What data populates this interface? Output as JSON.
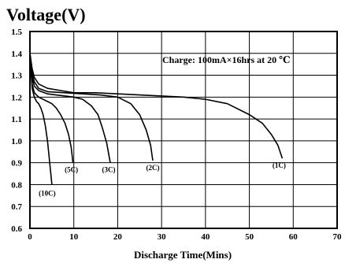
{
  "chart_data": {
    "type": "line",
    "title": "Voltage(V)",
    "xlabel": "Discharge Time(Mins)",
    "ylabel": "",
    "xlim": [
      0,
      70
    ],
    "ylim": [
      0.6,
      1.5
    ],
    "xticks": [
      0,
      10,
      20,
      30,
      40,
      50,
      60,
      70
    ],
    "yticks": [
      0.6,
      0.7,
      0.8,
      0.9,
      1.0,
      1.1,
      1.2,
      1.3,
      1.4,
      1.5
    ],
    "xtick_labels": [
      "0",
      "10",
      "20",
      "30",
      "40",
      "50",
      "60",
      "70"
    ],
    "ytick_labels": [
      "0.6",
      "0.7",
      "0.8",
      "0.9",
      "1.0",
      "1.1",
      "1.2",
      "1.3",
      "1.4",
      "1.5"
    ],
    "grid": true,
    "annotation": "Charge: 100mA×16hrs at 20 ℃",
    "series": [
      {
        "name": "(1C)",
        "x": [
          0,
          0.5,
          1,
          2,
          4,
          7,
          10,
          15,
          20,
          25,
          30,
          35,
          40,
          45,
          50,
          53,
          55,
          56.5,
          57.5
        ],
        "y": [
          1.4,
          1.33,
          1.29,
          1.26,
          1.24,
          1.23,
          1.22,
          1.22,
          1.215,
          1.21,
          1.205,
          1.2,
          1.19,
          1.17,
          1.12,
          1.08,
          1.03,
          0.98,
          0.92
        ]
      },
      {
        "name": "(2C)",
        "x": [
          0,
          0.5,
          1,
          2,
          4,
          8,
          12,
          16,
          20,
          23,
          25,
          26.5,
          27.5,
          28
        ],
        "y": [
          1.4,
          1.31,
          1.27,
          1.24,
          1.225,
          1.22,
          1.215,
          1.21,
          1.2,
          1.17,
          1.12,
          1.05,
          0.98,
          0.91
        ]
      },
      {
        "name": "(3C)",
        "x": [
          0,
          0.5,
          1,
          2,
          4,
          6,
          8,
          10,
          12,
          14,
          15.5,
          16.5,
          17.5,
          18.3
        ],
        "y": [
          1.4,
          1.29,
          1.25,
          1.23,
          1.215,
          1.21,
          1.205,
          1.2,
          1.19,
          1.16,
          1.12,
          1.06,
          0.99,
          0.9
        ]
      },
      {
        "name": "(5C)",
        "x": [
          0,
          0.5,
          1,
          2,
          3,
          4,
          5,
          6,
          7,
          8,
          8.8,
          9.4,
          9.8
        ],
        "y": [
          1.4,
          1.26,
          1.22,
          1.2,
          1.19,
          1.18,
          1.17,
          1.15,
          1.12,
          1.08,
          1.03,
          0.97,
          0.9
        ]
      },
      {
        "name": "(10C)",
        "x": [
          0,
          0.5,
          1,
          1.5,
          2,
          2.5,
          3,
          3.5,
          4,
          4.5,
          5
        ],
        "y": [
          1.4,
          1.24,
          1.2,
          1.18,
          1.17,
          1.15,
          1.12,
          1.07,
          1.0,
          0.9,
          0.8
        ]
      }
    ]
  }
}
